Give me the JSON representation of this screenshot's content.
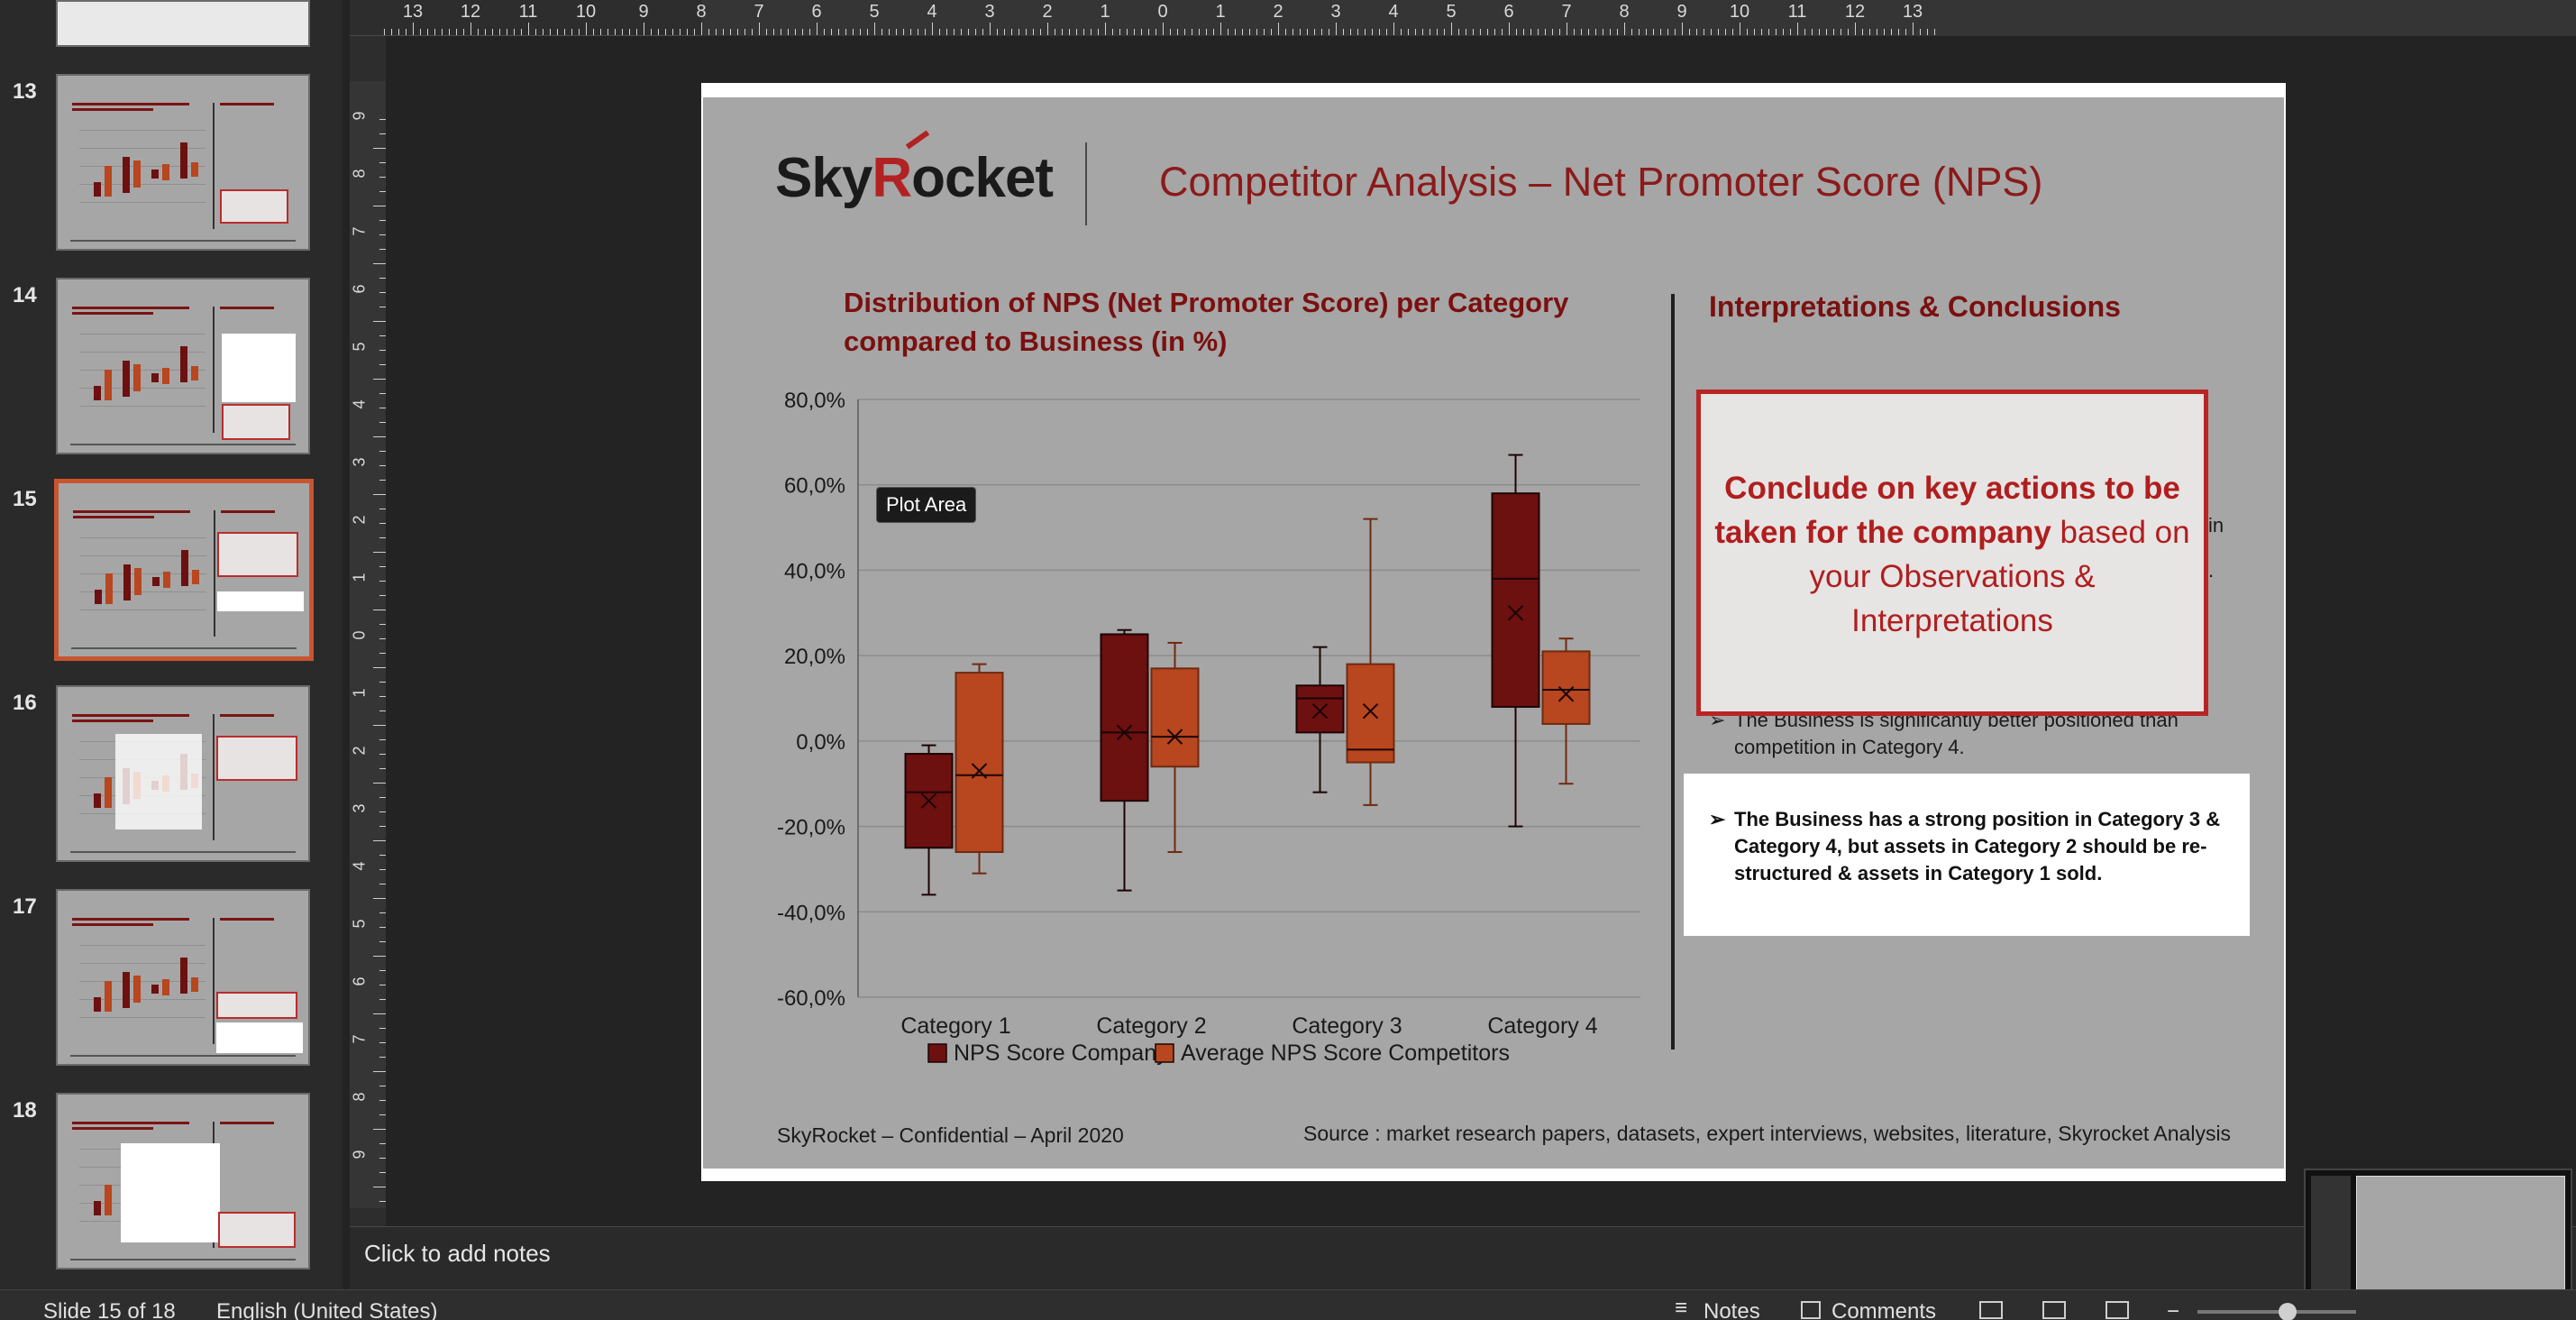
{
  "thumbnails": [
    {
      "number": "13"
    },
    {
      "number": "14"
    },
    {
      "number": "15",
      "selected": true
    },
    {
      "number": "16"
    },
    {
      "number": "17"
    },
    {
      "number": "18"
    }
  ],
  "ruler": {
    "top_labels": [
      "13",
      "12",
      "11",
      "10",
      "9",
      "8",
      "7",
      "6",
      "5",
      "4",
      "3",
      "2",
      "1",
      "0",
      "1",
      "2",
      "3",
      "4",
      "5",
      "6",
      "7",
      "8",
      "9",
      "10",
      "11",
      "12",
      "13"
    ],
    "left_labels": [
      "9",
      "8",
      "7",
      "6",
      "5",
      "4",
      "3",
      "2",
      "1",
      "0",
      "1",
      "2",
      "3",
      "4",
      "5",
      "6",
      "7",
      "8",
      "9"
    ]
  },
  "slide": {
    "logo_prefix": "Sky",
    "logo_r": "R",
    "logo_suffix": "ocket",
    "title": "Competitor Analysis – Net Promoter Score (NPS)",
    "interpretations_title": "Interpretations & Conclusions",
    "callout": {
      "bold": "Conclude on key actions to be taken for the company",
      "rest": " based on your Observations & Interpretations"
    },
    "hidden_fragment_1": "in",
    "hidden_fragment_2": ".",
    "bullet_2": "The Business is significantly better positioned than competition in Category 4.",
    "bullet_3": "The Business has a strong position in Category 3 & Category 4, but assets in Category 2 should be re-structured & assets in Category 1 sold.",
    "arrow": "➢",
    "footer_left": "SkyRocket – Confidential – April 2020",
    "footer_right": "Source : market research papers, datasets, expert interviews, websites, literature, Skyrocket Analysis",
    "tooltip": "Plot Area"
  },
  "chart_data": {
    "type": "box",
    "title": "Distribution of NPS (Net Promoter Score) per Category compared to Business (in %)",
    "categories": [
      "Category 1",
      "Category 2",
      "Category 3",
      "Category 4"
    ],
    "y_ticks": [
      "80,0%",
      "60,0%",
      "40,0%",
      "20,0%",
      "0,0%",
      "-20,0%",
      "-40,0%",
      "-60,0%"
    ],
    "ylim": [
      -60,
      80
    ],
    "legend_position": "bottom",
    "series": [
      {
        "name": "NPS Score Company",
        "color": "#6d1010",
        "boxes": [
          {
            "min": -36,
            "q1": -25,
            "median": -12,
            "q3": -3,
            "max": -1,
            "mean": -14
          },
          {
            "min": -35,
            "q1": -14,
            "median": 2,
            "q3": 25,
            "max": 26,
            "mean": 2
          },
          {
            "min": -12,
            "q1": 2,
            "median": 10,
            "q3": 13,
            "max": 22,
            "mean": 7
          },
          {
            "min": -20,
            "q1": 8,
            "median": 38,
            "q3": 58,
            "max": 67,
            "mean": 30
          }
        ]
      },
      {
        "name": "Average NPS Score Competitors",
        "color": "#b8461f",
        "boxes": [
          {
            "min": -31,
            "q1": -26,
            "median": -8,
            "q3": 16,
            "max": 18,
            "mean": -7
          },
          {
            "min": -26,
            "q1": -6,
            "median": 1,
            "q3": 17,
            "max": 23,
            "mean": 1
          },
          {
            "min": -15,
            "q1": -5,
            "median": -2,
            "q3": 18,
            "max": 52,
            "mean": 7
          },
          {
            "min": -10,
            "q1": 4,
            "median": 12,
            "q3": 21,
            "max": 24,
            "mean": 11
          }
        ]
      }
    ]
  },
  "notes": {
    "placeholder": "Click to add notes"
  },
  "status_bar": {
    "slide_counter": "Slide 15 of 18",
    "language": "English (United States)",
    "notes_label": "Notes",
    "comments_label": "Comments"
  }
}
